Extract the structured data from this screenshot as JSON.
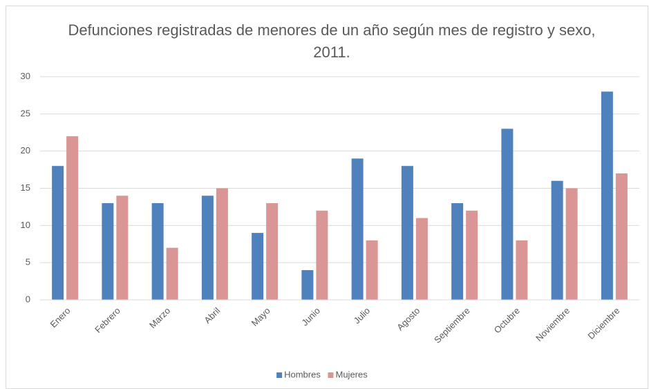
{
  "chart_data": {
    "type": "bar",
    "title": "Defunciones registradas de menores de un año según mes de registro y sexo, 2011.",
    "categories": [
      "Enero",
      "Febrero",
      "Marzo",
      "Abril",
      "Mayo",
      "Junio",
      "Julio",
      "Agosto",
      "Septiembre",
      "Octubre",
      "Noviembre",
      "Diciembre"
    ],
    "series": [
      {
        "name": "Hombres",
        "color": "#4f81bd",
        "values": [
          18,
          13,
          13,
          14,
          9,
          4,
          19,
          18,
          13,
          23,
          16,
          28
        ]
      },
      {
        "name": "Mujeres",
        "color": "#d99694",
        "values": [
          22,
          14,
          7,
          15,
          13,
          12,
          8,
          11,
          12,
          8,
          15,
          17
        ]
      }
    ],
    "ylim": [
      0,
      30
    ],
    "yticks": [
      0,
      5,
      10,
      15,
      20,
      25,
      30
    ],
    "grid": true,
    "legend": "bottom"
  }
}
